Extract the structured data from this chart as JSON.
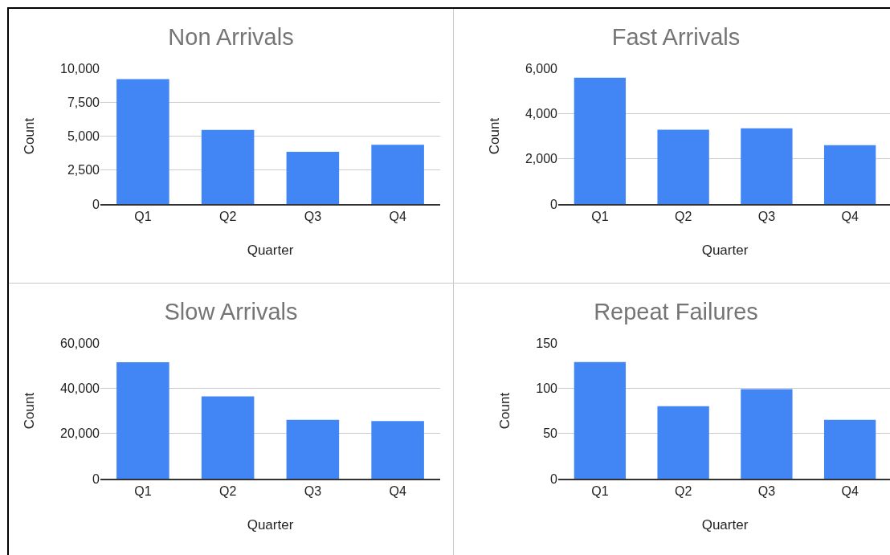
{
  "chart_data": [
    {
      "type": "bar",
      "title": "Non Arrivals",
      "xlabel": "Quarter",
      "ylabel": "Count",
      "categories": [
        "Q1",
        "Q2",
        "Q3",
        "Q4"
      ],
      "values": [
        9200,
        5460,
        3850,
        4360
      ],
      "color": "#4285f4",
      "ylim": [
        0,
        10000
      ],
      "yticks": [
        {
          "value": 0,
          "label": "0"
        },
        {
          "value": 2500,
          "label": "2,500"
        },
        {
          "value": 5000,
          "label": "5,000"
        },
        {
          "value": 7500,
          "label": "7,500"
        },
        {
          "value": 10000,
          "label": "10,000"
        }
      ],
      "grid": "y"
    },
    {
      "type": "bar",
      "title": "Fast Arrivals",
      "xlabel": "Quarter",
      "ylabel": "Count",
      "categories": [
        "Q1",
        "Q2",
        "Q3",
        "Q4"
      ],
      "values": [
        5580,
        3280,
        3350,
        2600
      ],
      "color": "#4285f4",
      "ylim": [
        0,
        6000
      ],
      "yticks": [
        {
          "value": 0,
          "label": "0"
        },
        {
          "value": 2000,
          "label": "2,000"
        },
        {
          "value": 4000,
          "label": "4,000"
        },
        {
          "value": 6000,
          "label": "6,000"
        }
      ],
      "grid": "y"
    },
    {
      "type": "bar",
      "title": "Slow Arrivals",
      "xlabel": "Quarter",
      "ylabel": "Count",
      "categories": [
        "Q1",
        "Q2",
        "Q3",
        "Q4"
      ],
      "values": [
        51500,
        36400,
        26000,
        25500
      ],
      "color": "#4285f4",
      "ylim": [
        0,
        60000
      ],
      "yticks": [
        {
          "value": 0,
          "label": "0"
        },
        {
          "value": 20000,
          "label": "20,000"
        },
        {
          "value": 40000,
          "label": "40,000"
        },
        {
          "value": 60000,
          "label": "60,000"
        }
      ],
      "grid": "y"
    },
    {
      "type": "bar",
      "title": "Repeat Failures",
      "xlabel": "Quarter",
      "ylabel": "Count",
      "categories": [
        "Q1",
        "Q2",
        "Q3",
        "Q4"
      ],
      "values": [
        129,
        80,
        99,
        65
      ],
      "color": "#4285f4",
      "ylim": [
        0,
        150
      ],
      "yticks": [
        0,
        50,
        100,
        150
      ],
      "grid": "y"
    }
  ]
}
